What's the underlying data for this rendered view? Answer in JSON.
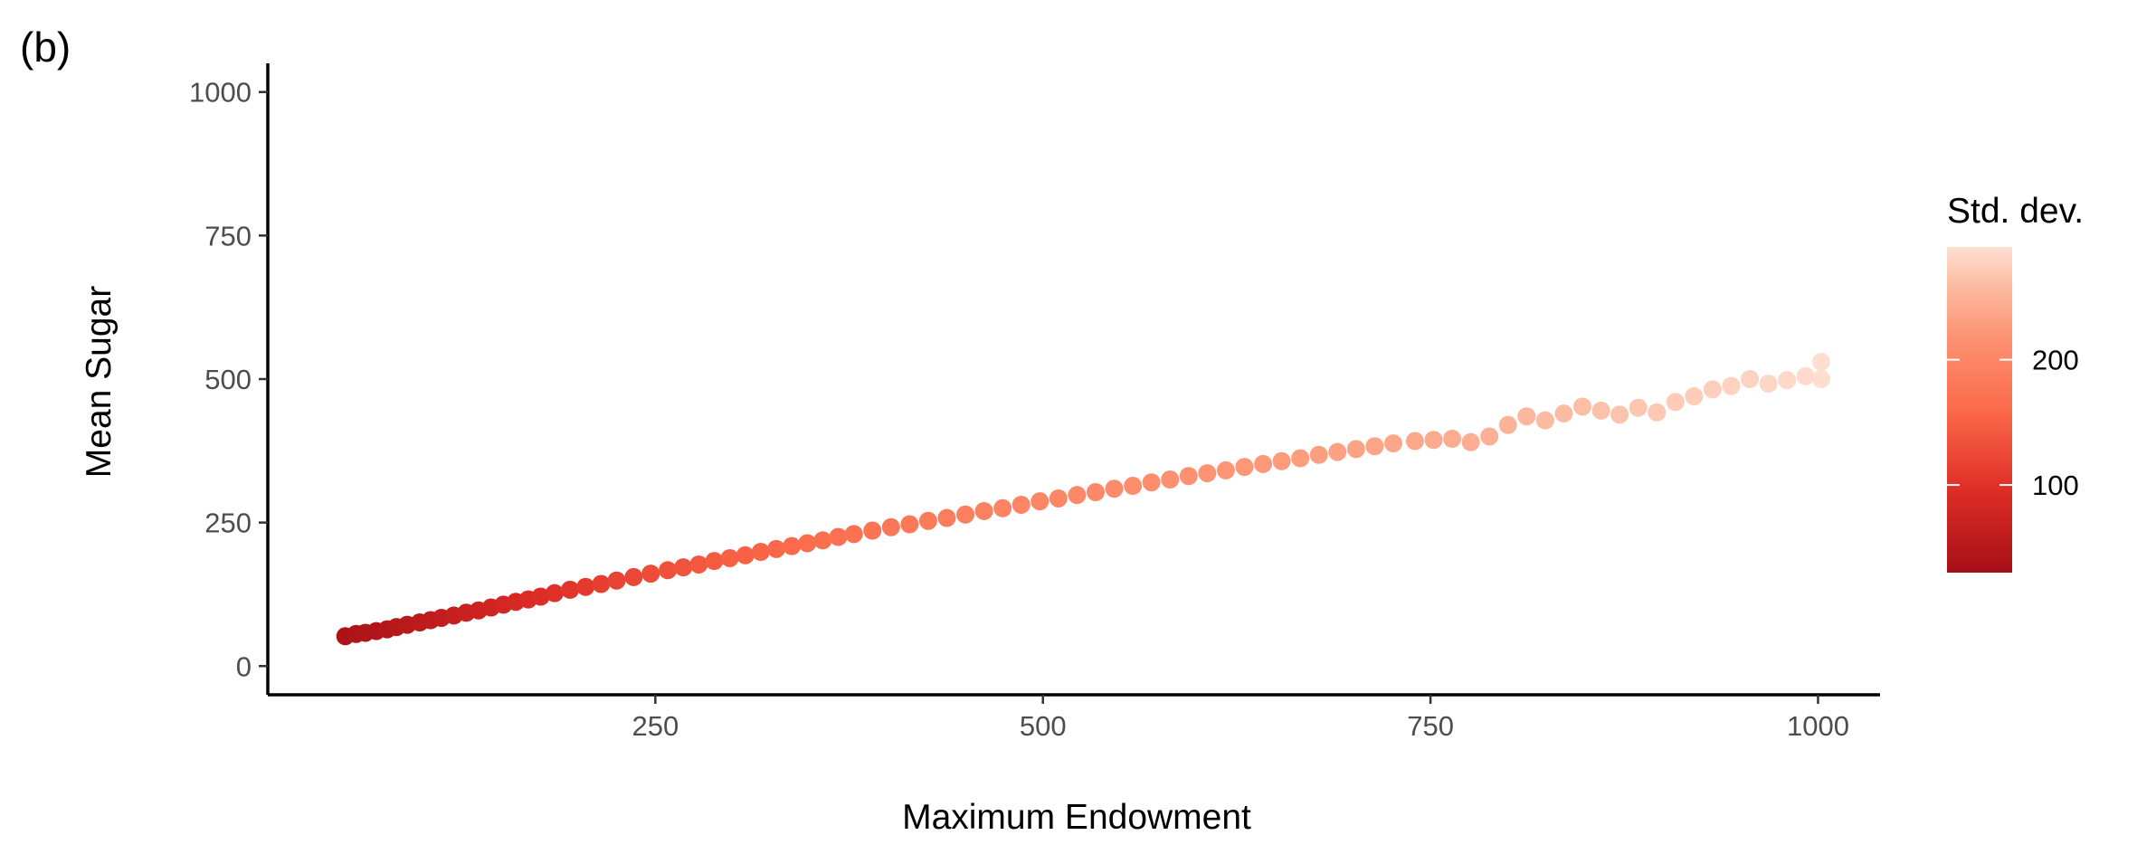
{
  "panel_label": "(b)",
  "chart_data": {
    "type": "scatter",
    "xlabel": "Maximum Endowment",
    "ylabel": "Mean Sugar",
    "xlim": [
      0,
      1040
    ],
    "ylim": [
      -50,
      1050
    ],
    "x_ticks": [
      250,
      500,
      750,
      1000
    ],
    "y_ticks": [
      0,
      250,
      500,
      750,
      1000
    ],
    "grid": false,
    "legend": {
      "title": "Std. dev.",
      "placement": "right",
      "type": "colorbar",
      "range": [
        30,
        290
      ],
      "ticks": [
        100,
        200
      ],
      "colors": [
        "#a50f15",
        "#de2d26",
        "#fb6a4a",
        "#fc9272",
        "#fcbba1",
        "#fee0d2"
      ]
    },
    "color_encodes": "Std. dev.",
    "points": {
      "x": [
        50,
        57,
        63,
        70,
        77,
        83,
        90,
        98,
        105,
        112,
        120,
        128,
        136,
        144,
        152,
        160,
        168,
        176,
        185,
        195,
        205,
        215,
        225,
        236,
        247,
        258,
        268,
        278,
        288,
        298,
        308,
        318,
        328,
        338,
        348,
        358,
        368,
        378,
        390,
        402,
        414,
        426,
        438,
        450,
        462,
        474,
        486,
        498,
        510,
        522,
        534,
        546,
        558,
        570,
        582,
        594,
        606,
        618,
        630,
        642,
        654,
        666,
        678,
        690,
        702,
        714,
        726,
        740,
        752,
        764,
        776,
        788,
        800,
        812,
        824,
        836,
        848,
        860,
        872,
        884,
        896,
        908,
        920,
        932,
        944,
        956,
        968,
        980,
        992,
        1002,
        1002
      ],
      "y": [
        52,
        56,
        58,
        61,
        64,
        68,
        72,
        76,
        80,
        84,
        88,
        93,
        97,
        102,
        107,
        112,
        116,
        121,
        127,
        133,
        138,
        143,
        149,
        155,
        161,
        167,
        172,
        177,
        183,
        188,
        193,
        199,
        204,
        209,
        214,
        219,
        225,
        230,
        236,
        242,
        247,
        253,
        258,
        264,
        270,
        275,
        281,
        287,
        292,
        298,
        303,
        309,
        314,
        320,
        325,
        331,
        336,
        341,
        347,
        352,
        357,
        362,
        368,
        373,
        378,
        383,
        388,
        392,
        394,
        396,
        390,
        400,
        420,
        435,
        428,
        440,
        452,
        445,
        438,
        450,
        442,
        460,
        470,
        482,
        488,
        500,
        492,
        498,
        505,
        530,
        500
      ],
      "std": [
        38,
        40,
        42,
        44,
        47,
        50,
        53,
        56,
        59,
        62,
        66,
        70,
        74,
        78,
        82,
        86,
        90,
        94,
        98,
        103,
        108,
        113,
        118,
        123,
        128,
        133,
        137,
        141,
        145,
        149,
        152,
        155,
        158,
        161,
        164,
        167,
        170,
        172,
        175,
        178,
        181,
        184,
        187,
        190,
        193,
        196,
        198,
        200,
        202,
        204,
        206,
        208,
        210,
        212,
        214,
        216,
        218,
        220,
        222,
        224,
        226,
        228,
        230,
        232,
        234,
        236,
        238,
        240,
        242,
        244,
        246,
        248,
        252,
        256,
        258,
        260,
        262,
        264,
        266,
        268,
        270,
        272,
        274,
        276,
        278,
        280,
        282,
        284,
        286,
        288,
        288
      ]
    }
  }
}
